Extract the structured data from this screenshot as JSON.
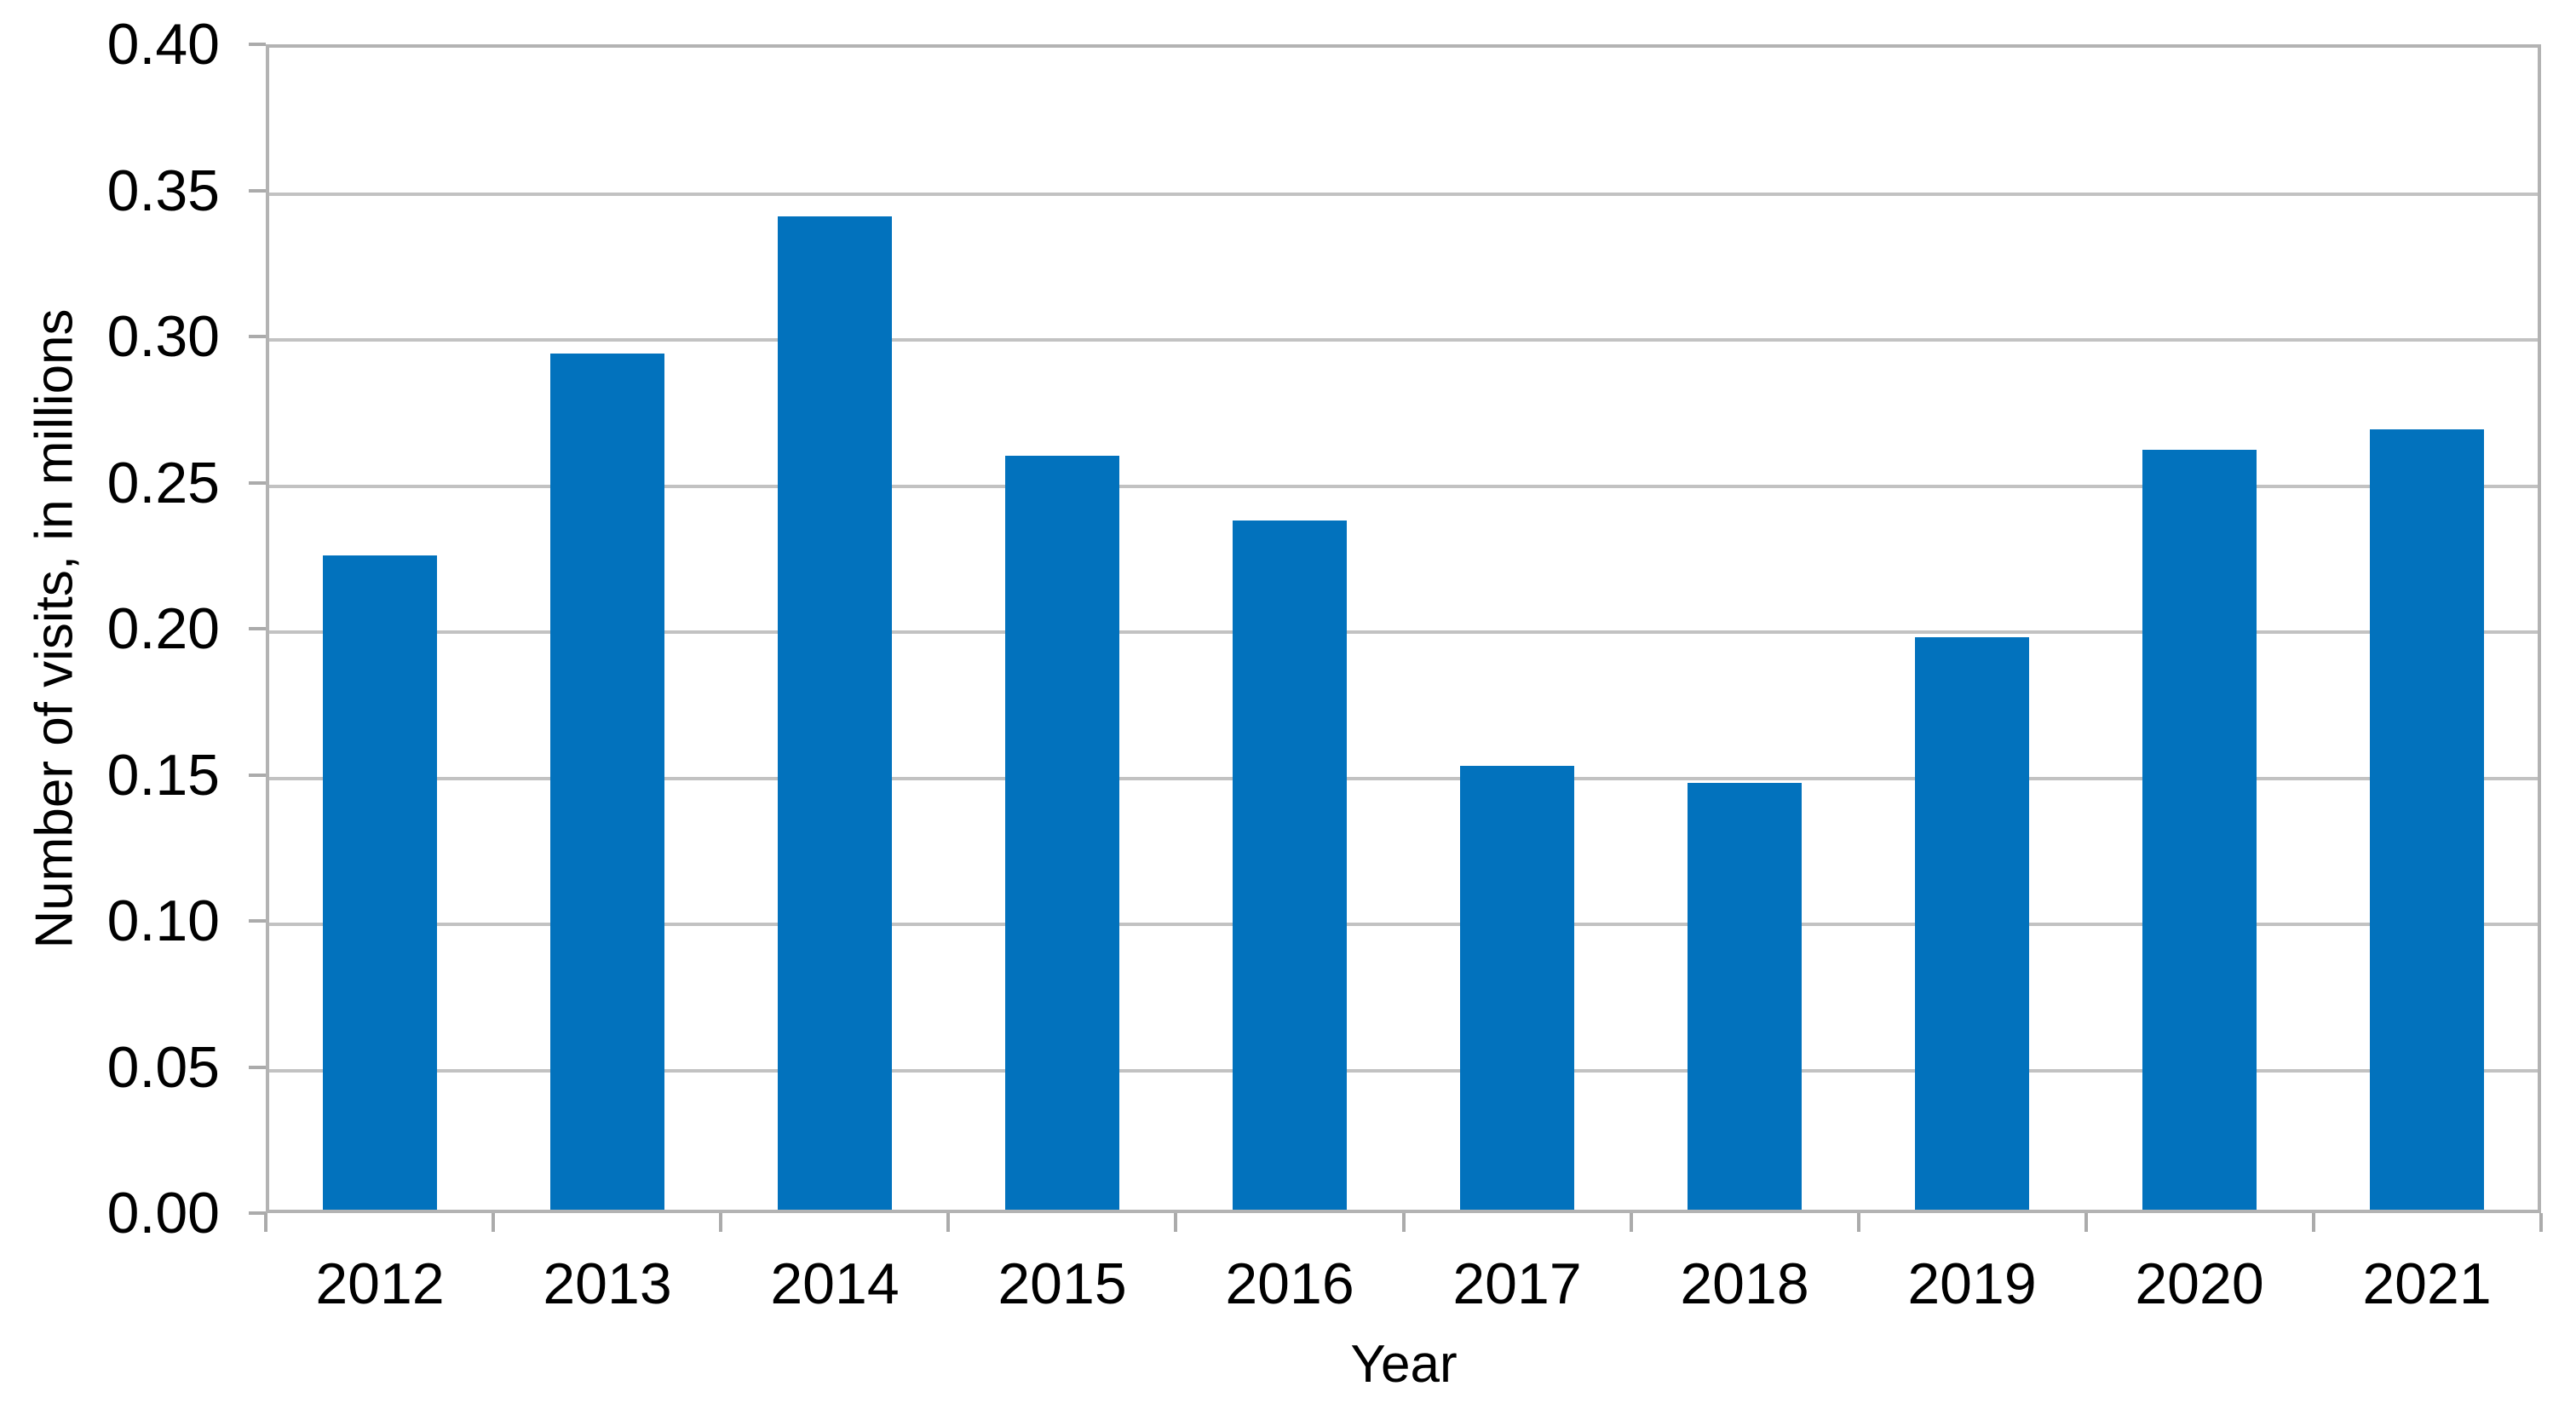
{
  "chart_data": {
    "type": "bar",
    "title": "",
    "categories": [
      "2012",
      "2013",
      "2014",
      "2015",
      "2016",
      "2017",
      "2018",
      "2019",
      "2020",
      "2021"
    ],
    "values": [
      0.224,
      0.293,
      0.34,
      0.258,
      0.236,
      0.152,
      0.146,
      0.196,
      0.26,
      0.267
    ],
    "series_name": "Number of visits",
    "xlabel": "Year",
    "ylabel": "Number of visits, in millions",
    "ylim": [
      0.0,
      0.4
    ],
    "ytick_step": 0.05,
    "ytick_labels": [
      "0.40",
      "0.35",
      "0.30",
      "0.25",
      "0.20",
      "0.15",
      "0.10",
      "0.05",
      "0.00"
    ],
    "grid": true,
    "legend": false,
    "bar_color": "#0272bd",
    "gridline_color": "#c2c2c2",
    "axis_color": "#ababab",
    "text_color": "#000000"
  }
}
